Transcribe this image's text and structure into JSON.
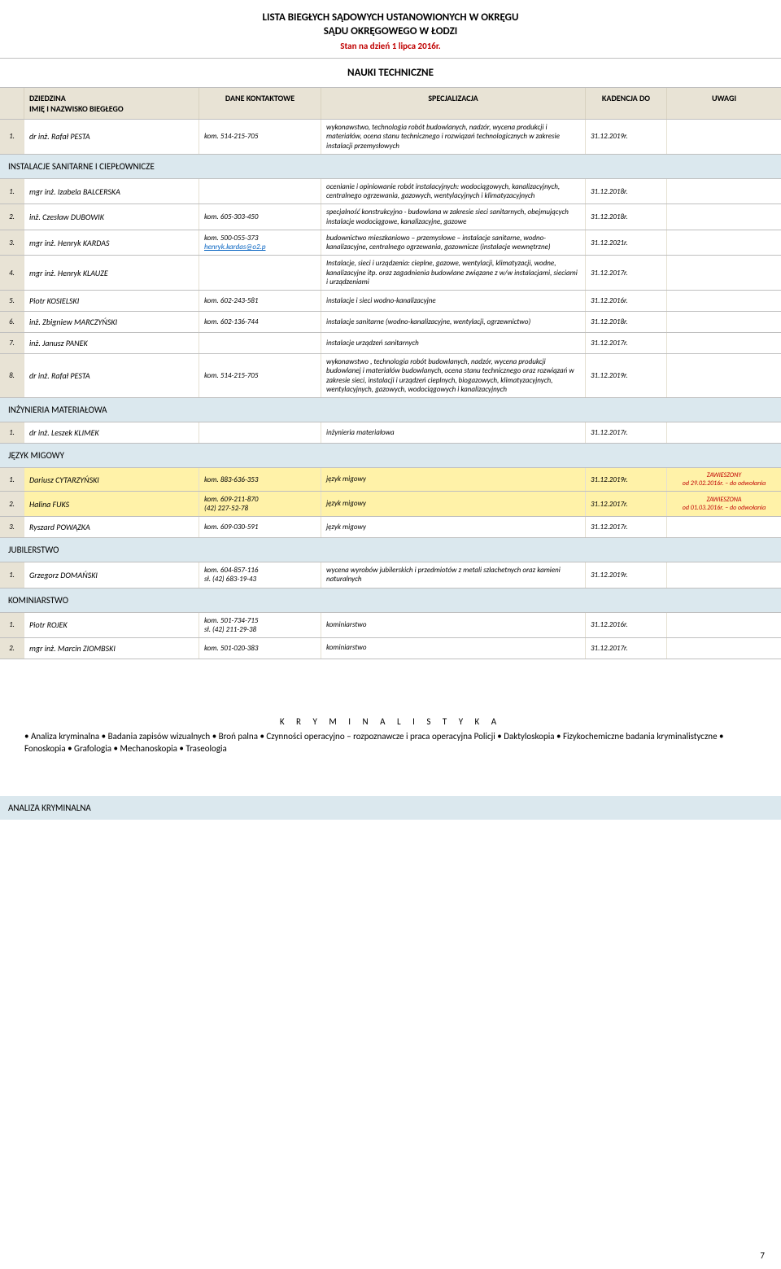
{
  "page": {
    "title": "LISTA BIEGŁYCH SĄDOWYCH USTANOWIONYCH W OKRĘGU",
    "subtitle": "SĄDU OKRĘGOWEGO W ŁODZI",
    "date": "Stan na dzień 1 lipca 2016r.",
    "category": "NAUKI TECHNICZNE",
    "page_number": "7"
  },
  "headers": {
    "dziedzina_line1": "DZIEDZINA",
    "dziedzina_line2": "IMIĘ I NAZWISKO BIEGŁEGO",
    "dane": "DANE KONTAKTOWE",
    "spec": "SPECJALIZACJA",
    "kadencja": "KADENCJA DO",
    "uwagi": "UWAGI"
  },
  "sections": [
    {
      "title": "",
      "rows": [
        {
          "num": "1.",
          "name": "dr inż. Rafał PESTA",
          "contact": "kom. 514-215-705",
          "spec": "wykonawstwo, technologia robót budowlanych, nadzór, wycena produkcji i materiałów, ocena stanu technicznego i rozwiązań technologicznych w zakresie instalacji przemysłowych",
          "kad": "31.12.2019r.",
          "uwagi": ""
        }
      ]
    },
    {
      "title": "INSTALACJE SANITARNE I CIEPŁOWNICZE",
      "rows": [
        {
          "num": "1.",
          "name": "mgr inż. Izabela BALCERSKA",
          "contact": "",
          "spec": "ocenianie i opiniowanie robót instalacyjnych: wodociągowych, kanalizacyjnych, centralnego ogrzewania, gazowych, wentylacyjnych i klimatyzacyjnych",
          "kad": "31.12.2018r.",
          "uwagi": ""
        },
        {
          "num": "2.",
          "name": "inż. Czesław DUBOWIK",
          "contact": "kom. 605-303-450",
          "spec": "specjalność konstrukcyjno - budowlana w zakresie sieci sanitarnych, obejmujących instalacje wodociągowe, kanalizacyjne, gazowe",
          "kad": "31.12.2018r.",
          "uwagi": ""
        },
        {
          "num": "3.",
          "name": "mgr inż. Henryk KARDAS",
          "contact": "kom. 500-055-373",
          "contact_link": "henryk.kardas@o2.p",
          "spec": "budownictwo mieszkaniowo – przemysłowe – instalacje sanitarne, wodno-kanalizacyjne, centralnego ogrzewania, gazownicze (instalacje wewnętrzne)",
          "kad": "31.12.2021r.",
          "uwagi": ""
        },
        {
          "num": "4.",
          "name": "mgr inż. Henryk KLAUZE",
          "contact": "",
          "spec": "Instalacje, sieci i urządzenia: cieplne, gazowe, wentylacji, klimatyzacji, wodne, kanalizacyjne itp. oraz zagadnienia budowlane związane z w/w instalacjami, sieciami i urządzeniami",
          "kad": "31.12.2017r.",
          "uwagi": ""
        },
        {
          "num": "5.",
          "name": "Piotr KOSIELSKI",
          "contact": "kom. 602-243-581",
          "spec": "instalacje i sieci wodno-kanalizacyjne",
          "kad": "31.12.2016r.",
          "uwagi": ""
        },
        {
          "num": "6.",
          "name": "inż. Zbigniew MARCZYŃSKI",
          "contact": "kom. 602-136-744",
          "spec": "instalacje sanitarne (wodno-kanalizacyjne, wentylacji, ogrzewnictwo)",
          "kad": "31.12.2018r.",
          "uwagi": ""
        },
        {
          "num": "7.",
          "name": "inż. Janusz PANEK",
          "contact": "",
          "spec": "instalacje urządzeń sanitarnych",
          "kad": "31.12.2017r.",
          "uwagi": ""
        },
        {
          "num": "8.",
          "name": "dr inż. Rafał PESTA",
          "contact": "kom. 514-215-705",
          "spec": "wykonawstwo , technologia robót budowlanych, nadzór, wycena produkcji budowlanej i materiałów budowlanych, ocena stanu technicznego oraz rozwiązań w zakresie sieci, instalacji i urządzeń cieplnych, biogazowych, klimatyzacyjnych, wentylacyjnych, gazowych, wodociągowych i kanalizacyjnych",
          "kad": "31.12.2019r.",
          "uwagi": ""
        }
      ]
    },
    {
      "title": "INŻYNIERIA MATERIAŁOWA",
      "rows": [
        {
          "num": "1.",
          "name": "dr inż. Leszek KLIMEK",
          "contact": "",
          "spec": "inżynieria materiałowa",
          "kad": "31.12.2017r.",
          "uwagi": ""
        }
      ]
    },
    {
      "title": "JĘZYK MIGOWY",
      "rows": [
        {
          "num": "1.",
          "name": "Dariusz CYTARZYŃSKI",
          "contact": "kom. 883-636-353",
          "spec": "język migowy",
          "kad": "31.12.2019r.",
          "uwagi_red1": "ZAWIESZONY",
          "uwagi_red2": "od 29.02.2016r. – do odwołania",
          "highlight": true
        },
        {
          "num": "2.",
          "name": "Halina FUKS",
          "contact": "kom. 609-211-870\n(42) 227-52-78",
          "spec": "język migowy",
          "kad": "31.12.2017r.",
          "uwagi_red1": "ZAWIESZONA",
          "uwagi_red2": "od 01.03.2016r. – do odwołania",
          "highlight": true
        },
        {
          "num": "3.",
          "name": "Ryszard POWĄZKA",
          "contact": "kom. 609-030-591",
          "spec": "język migowy",
          "kad": "31.12.2017r.",
          "uwagi": ""
        }
      ]
    },
    {
      "title": "JUBILERSTWO",
      "rows": [
        {
          "num": "1.",
          "name": "Grzegorz DOMAŃSKI",
          "contact": "kom. 604-857-116\nsł. (42) 683-19-43",
          "spec": "wycena wyrobów jubilerskich i przedmiotów z metali szlachetnych oraz kamieni naturalnych",
          "kad": "31.12.2019r.",
          "uwagi": ""
        }
      ]
    },
    {
      "title": "KOMINIARSTWO",
      "rows": [
        {
          "num": "1.",
          "name": "Piotr ROJEK",
          "contact": "kom. 501-734-715\nsł. (42) 211-29-38",
          "spec": "kominiarstwo",
          "kad": "31.12.2016r.",
          "uwagi": ""
        },
        {
          "num": "2.",
          "name": "mgr inż. Marcin ZIOMBSKI",
          "contact": "kom. 501-020-383",
          "spec": "kominiarstwo",
          "kad": "31.12.2017r.",
          "uwagi": ""
        }
      ]
    }
  ],
  "kryminal": {
    "title": "K R Y M I N A L I S T Y K A",
    "body": "• Analiza kryminalna • Badania zapisów wizualnych • Broń palna • Czynności operacyjno – rozpoznawcze i praca operacyjna Policji  • Daktyloskopia • Fizykochemiczne badania kryminalistyczne • Fonoskopia • Grafologia • Mechanoskopia • Traseologia"
  },
  "analiza": "ANALIZA KRYMINALNA"
}
